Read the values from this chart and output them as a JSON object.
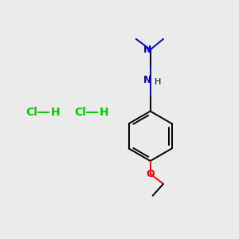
{
  "bg_color": "#ebebeb",
  "bond_color": "#000000",
  "N_color": "#0000cc",
  "O_color": "#ff0000",
  "Cl_color": "#00cc00",
  "H_color": "#00cc00",
  "figsize": [
    3.0,
    3.0
  ],
  "dpi": 100,
  "xlim": [
    0,
    10
  ],
  "ylim": [
    0,
    10
  ]
}
